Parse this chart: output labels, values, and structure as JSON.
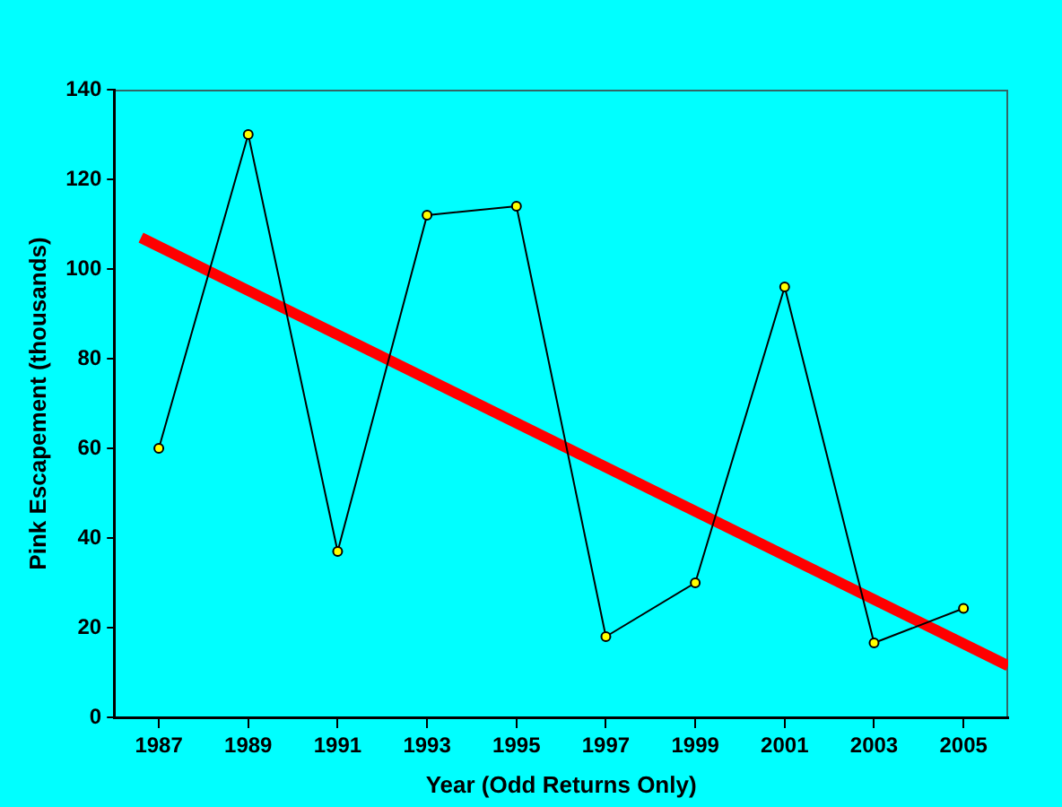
{
  "chart_data": {
    "type": "line",
    "xlabel": "Year (Odd Returns Only)",
    "ylabel": "Pink Escapement (thousands)",
    "x": [
      1987,
      1989,
      1991,
      1993,
      1995,
      1997,
      1999,
      2001,
      2003,
      2005
    ],
    "series": [
      {
        "color": "#000000",
        "marker": "circle",
        "values": [
          60,
          130,
          37,
          112,
          114,
          18,
          30,
          96,
          16.6,
          24.3
        ]
      },
      {
        "color": "#ff0000",
        "marker": "none",
        "x": [
          1986.6,
          2006
        ],
        "values": [
          107,
          11.5
        ]
      }
    ],
    "xlim": [
      1986,
      2006
    ],
    "xticks": [
      1987,
      1989,
      1991,
      1993,
      1995,
      1997,
      1999,
      2001,
      2003,
      2005
    ],
    "ylim": [
      0,
      140
    ],
    "yticks": [
      0,
      20,
      40,
      60,
      80,
      100,
      120,
      140
    ],
    "grid": false,
    "legend": false
  }
}
